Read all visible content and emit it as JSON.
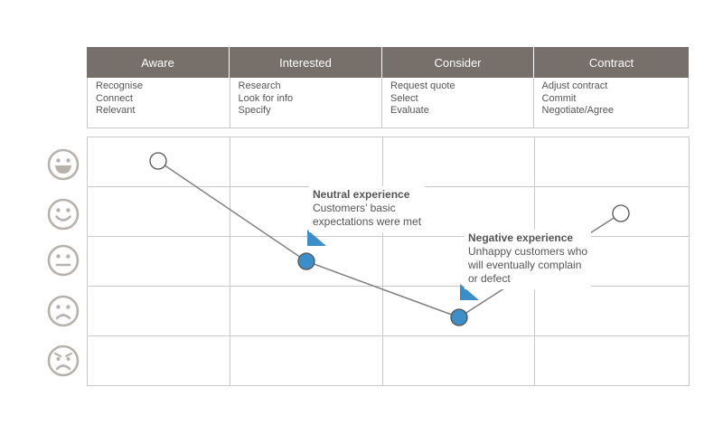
{
  "stages": [
    {
      "label": "Aware",
      "tasks": [
        "Recognise",
        "Connect",
        "Relevant"
      ]
    },
    {
      "label": "Interested",
      "tasks": [
        "Research",
        "Look for info",
        "Specify"
      ]
    },
    {
      "label": "Consider",
      "tasks": [
        "Request quote",
        "Select",
        "Evaluate"
      ]
    },
    {
      "label": "Contract",
      "tasks": [
        "Adjust contract",
        "Commit",
        "Negotiate/Agree"
      ]
    }
  ],
  "mood_scale": [
    "very-happy-face-icon",
    "happy-face-icon",
    "neutral-face-icon",
    "sad-face-icon",
    "angry-face-icon"
  ],
  "journey_points": [
    {
      "stage": "Aware",
      "mood_level": 1,
      "filled": false
    },
    {
      "stage": "Interested",
      "mood_level": 3,
      "filled": true
    },
    {
      "stage": "Consider",
      "mood_level": 4,
      "filled": true
    },
    {
      "stage": "Contract",
      "mood_level": 2,
      "filled": false
    }
  ],
  "callouts": {
    "neutral": {
      "title": "Neutral experience",
      "lines": [
        "Customers’ basic",
        "expectations were met"
      ]
    },
    "negative": {
      "title": "Negative experience",
      "lines": [
        "Unhappy customers who",
        "will eventually complain",
        "or defect"
      ]
    }
  },
  "colors": {
    "header": "#77706a",
    "grid": "#c9c9c9",
    "line": "#808080",
    "accent": "#3c8ec9",
    "face": "#b8b2ac"
  }
}
